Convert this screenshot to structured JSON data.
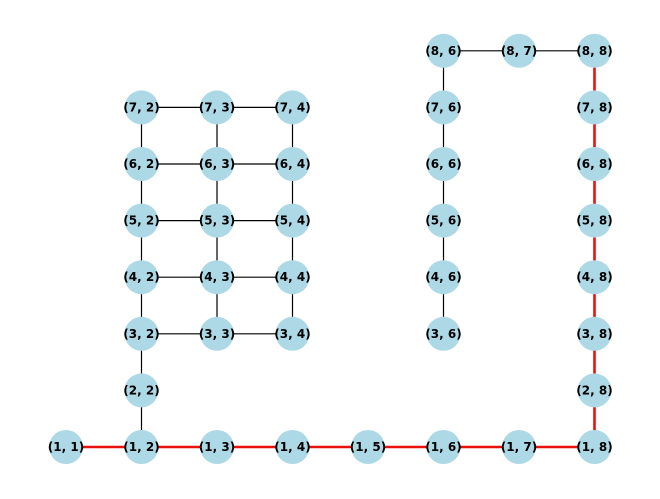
{
  "colors": {
    "node": "#add8e6",
    "edge": "#000000",
    "path": "#e8120c",
    "label": "#000000"
  },
  "nodes": [
    {
      "id": "1,1",
      "label": "(1, 1)"
    },
    {
      "id": "1,2",
      "label": "(1, 2)"
    },
    {
      "id": "1,3",
      "label": "(1, 3)"
    },
    {
      "id": "1,4",
      "label": "(1, 4)"
    },
    {
      "id": "1,5",
      "label": "(1, 5)"
    },
    {
      "id": "1,6",
      "label": "(1, 6)"
    },
    {
      "id": "1,7",
      "label": "(1, 7)"
    },
    {
      "id": "1,8",
      "label": "(1, 8)"
    },
    {
      "id": "2,2",
      "label": "(2, 2)"
    },
    {
      "id": "2,8",
      "label": "(2, 8)"
    },
    {
      "id": "3,2",
      "label": "(3, 2)"
    },
    {
      "id": "3,3",
      "label": "(3, 3)"
    },
    {
      "id": "3,4",
      "label": "(3, 4)"
    },
    {
      "id": "3,6",
      "label": "(3, 6)"
    },
    {
      "id": "3,8",
      "label": "(3, 8)"
    },
    {
      "id": "4,2",
      "label": "(4, 2)"
    },
    {
      "id": "4,3",
      "label": "(4, 3)"
    },
    {
      "id": "4,4",
      "label": "(4, 4)"
    },
    {
      "id": "4,6",
      "label": "(4, 6)"
    },
    {
      "id": "4,8",
      "label": "(4, 8)"
    },
    {
      "id": "5,2",
      "label": "(5, 2)"
    },
    {
      "id": "5,3",
      "label": "(5, 3)"
    },
    {
      "id": "5,4",
      "label": "(5, 4)"
    },
    {
      "id": "5,6",
      "label": "(5, 6)"
    },
    {
      "id": "5,8",
      "label": "(5, 8)"
    },
    {
      "id": "6,2",
      "label": "(6, 2)"
    },
    {
      "id": "6,3",
      "label": "(6, 3)"
    },
    {
      "id": "6,4",
      "label": "(6, 4)"
    },
    {
      "id": "6,6",
      "label": "(6, 6)"
    },
    {
      "id": "6,8",
      "label": "(6, 8)"
    },
    {
      "id": "7,2",
      "label": "(7, 2)"
    },
    {
      "id": "7,3",
      "label": "(7, 3)"
    },
    {
      "id": "7,4",
      "label": "(7, 4)"
    },
    {
      "id": "7,6",
      "label": "(7, 6)"
    },
    {
      "id": "7,8",
      "label": "(7, 8)"
    },
    {
      "id": "8,6",
      "label": "(8, 6)"
    },
    {
      "id": "8,7",
      "label": "(8, 7)"
    },
    {
      "id": "8,8",
      "label": "(8, 8)"
    }
  ],
  "edges": [
    {
      "from": "1,1",
      "to": "1,2",
      "path": true
    },
    {
      "from": "1,2",
      "to": "1,3",
      "path": true
    },
    {
      "from": "1,3",
      "to": "1,4",
      "path": true
    },
    {
      "from": "1,4",
      "to": "1,5",
      "path": true
    },
    {
      "from": "1,5",
      "to": "1,6",
      "path": true
    },
    {
      "from": "1,6",
      "to": "1,7",
      "path": true
    },
    {
      "from": "1,7",
      "to": "1,8",
      "path": true
    },
    {
      "from": "1,8",
      "to": "2,8",
      "path": true
    },
    {
      "from": "2,8",
      "to": "3,8",
      "path": true
    },
    {
      "from": "3,8",
      "to": "4,8",
      "path": true
    },
    {
      "from": "4,8",
      "to": "5,8",
      "path": true
    },
    {
      "from": "5,8",
      "to": "6,8",
      "path": true
    },
    {
      "from": "6,8",
      "to": "7,8",
      "path": true
    },
    {
      "from": "7,8",
      "to": "8,8",
      "path": true
    },
    {
      "from": "1,2",
      "to": "2,2",
      "path": false
    },
    {
      "from": "2,2",
      "to": "3,2",
      "path": false
    },
    {
      "from": "3,2",
      "to": "4,2",
      "path": false
    },
    {
      "from": "4,2",
      "to": "5,2",
      "path": false
    },
    {
      "from": "5,2",
      "to": "6,2",
      "path": false
    },
    {
      "from": "6,2",
      "to": "7,2",
      "path": false
    },
    {
      "from": "3,3",
      "to": "4,3",
      "path": false
    },
    {
      "from": "4,3",
      "to": "5,3",
      "path": false
    },
    {
      "from": "5,3",
      "to": "6,3",
      "path": false
    },
    {
      "from": "6,3",
      "to": "7,3",
      "path": false
    },
    {
      "from": "3,4",
      "to": "4,4",
      "path": false
    },
    {
      "from": "4,4",
      "to": "5,4",
      "path": false
    },
    {
      "from": "5,4",
      "to": "6,4",
      "path": false
    },
    {
      "from": "6,4",
      "to": "7,4",
      "path": false
    },
    {
      "from": "3,2",
      "to": "3,3",
      "path": false
    },
    {
      "from": "3,3",
      "to": "3,4",
      "path": false
    },
    {
      "from": "4,2",
      "to": "4,3",
      "path": false
    },
    {
      "from": "4,3",
      "to": "4,4",
      "path": false
    },
    {
      "from": "5,2",
      "to": "5,3",
      "path": false
    },
    {
      "from": "5,3",
      "to": "5,4",
      "path": false
    },
    {
      "from": "6,2",
      "to": "6,3",
      "path": false
    },
    {
      "from": "6,3",
      "to": "6,4",
      "path": false
    },
    {
      "from": "7,2",
      "to": "7,3",
      "path": false
    },
    {
      "from": "7,3",
      "to": "7,4",
      "path": false
    },
    {
      "from": "3,6",
      "to": "4,6",
      "path": false
    },
    {
      "from": "4,6",
      "to": "5,6",
      "path": false
    },
    {
      "from": "5,6",
      "to": "6,6",
      "path": false
    },
    {
      "from": "6,6",
      "to": "7,6",
      "path": false
    },
    {
      "from": "7,6",
      "to": "8,6",
      "path": false
    },
    {
      "from": "8,6",
      "to": "8,7",
      "path": false
    },
    {
      "from": "8,7",
      "to": "8,8",
      "path": false
    }
  ]
}
